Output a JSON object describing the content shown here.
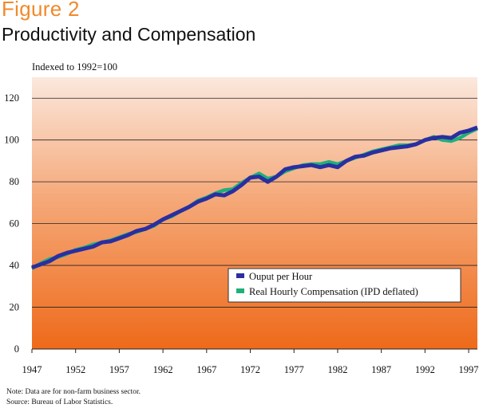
{
  "figure_label": "Figure 2",
  "colors": {
    "output": "#2a2fa0",
    "compensation": "#1fb07a",
    "title_accent": "#f08a2c",
    "gradient_top": "#fbe8dd",
    "gradient_bottom": "#ee6a1a"
  },
  "chart_data": {
    "type": "line",
    "title": "Productivity and Compensation",
    "ylabel": "Indexed to 1992=100",
    "xlabel": "",
    "ylim": [
      0,
      130
    ],
    "xlim": [
      1947,
      1998
    ],
    "x_ticks": [
      "1947",
      "1952",
      "1957",
      "1962",
      "1967",
      "1972",
      "1977",
      "1982",
      "1987",
      "1992",
      "1997"
    ],
    "y_ticks": [
      "0",
      "20",
      "40",
      "60",
      "80",
      "100",
      "120"
    ],
    "grid": true,
    "legend_position": "lower-right",
    "x": [
      1947,
      1948,
      1949,
      1950,
      1951,
      1952,
      1953,
      1954,
      1955,
      1956,
      1957,
      1958,
      1959,
      1960,
      1961,
      1962,
      1963,
      1964,
      1965,
      1966,
      1967,
      1968,
      1969,
      1970,
      1971,
      1972,
      1973,
      1974,
      1975,
      1976,
      1977,
      1978,
      1979,
      1980,
      1981,
      1982,
      1983,
      1984,
      1985,
      1986,
      1987,
      1988,
      1989,
      1990,
      1991,
      1992,
      1993,
      1994,
      1995,
      1996,
      1997,
      1998
    ],
    "series": [
      {
        "name": "Ouput per Hour",
        "values": [
          39,
          40.5,
          42,
          44.5,
          46,
          47,
          48,
          49,
          51,
          51.5,
          53,
          54.5,
          56.5,
          57.5,
          59.5,
          62,
          64,
          66,
          68,
          70.5,
          72,
          74,
          73.5,
          75.5,
          78.5,
          82,
          82.5,
          80,
          82.5,
          86,
          87,
          87.5,
          88,
          87,
          88,
          87,
          90,
          92,
          92.5,
          94,
          95,
          96,
          96.5,
          97,
          98,
          100,
          101,
          101.5,
          101,
          103.5,
          104.5,
          106
        ]
      },
      {
        "name": "Real Hourly Compensation (IPD deflated)",
        "values": [
          38.5,
          41,
          43,
          44,
          45.5,
          47.5,
          48.5,
          50,
          51,
          52,
          53.5,
          55,
          56,
          57.5,
          59,
          62,
          63.5,
          66,
          68,
          71,
          72.5,
          74.5,
          76,
          76.5,
          79.5,
          82,
          84,
          81.5,
          82.5,
          85,
          86.5,
          88,
          88.5,
          88.5,
          89.5,
          88.5,
          90,
          91.5,
          93,
          94.5,
          95.5,
          96.5,
          97.5,
          97.5,
          98,
          100,
          101.5,
          100,
          99.5,
          101,
          103.5,
          105.5
        ]
      }
    ]
  },
  "notes": [
    "Note: Data are for non-farm business sector.",
    "Source: Bureau of Labor Statistics."
  ]
}
